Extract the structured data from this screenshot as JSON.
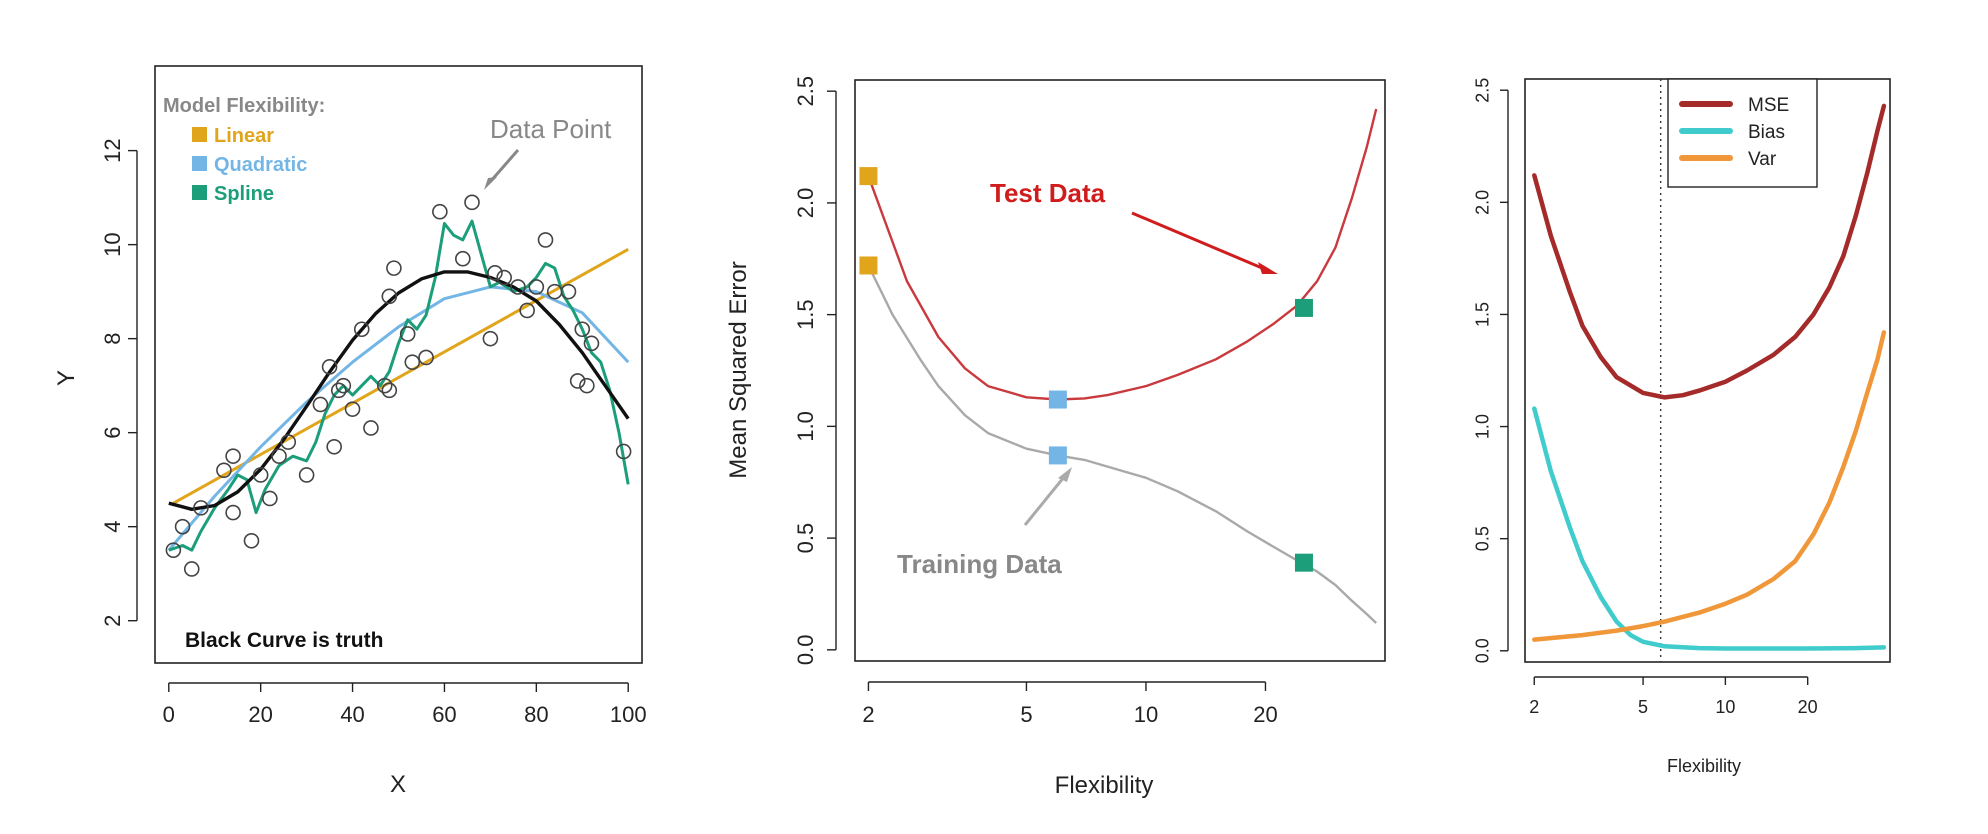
{
  "colors": {
    "linear": "#E1A51C",
    "quadratic": "#73B6E6",
    "spline": "#1D9E7A",
    "truth": "#111111",
    "points": "#444444",
    "test": "#C9393D",
    "train": "#A9A9A9",
    "mse": "#A52A2A",
    "bias": "#40CCCC",
    "var": "#F0973A",
    "test_annot": "#D01C1C",
    "gray_annot": "#888888"
  },
  "chart_data": [
    {
      "type": "scatter",
      "xlabel": "X",
      "ylabel": "Y",
      "xlim": [
        -3,
        103
      ],
      "ylim": [
        1.1,
        13.8
      ],
      "xticks": [
        "0",
        "20",
        "40",
        "60",
        "80",
        "100"
      ],
      "yticks": [
        "2",
        "4",
        "6",
        "8",
        "10",
        "12"
      ],
      "legend_title": "Model Flexibility:",
      "legend": [
        "Linear",
        "Quadratic",
        "Spline"
      ],
      "annotations": {
        "data_point": "Data Point",
        "truth_note": "Black Curve is truth"
      },
      "points": [
        [
          1,
          3.5
        ],
        [
          3,
          4.0
        ],
        [
          5,
          3.1
        ],
        [
          7,
          4.4
        ],
        [
          12,
          5.2
        ],
        [
          14,
          5.5
        ],
        [
          14,
          4.3
        ],
        [
          18,
          3.7
        ],
        [
          20,
          5.1
        ],
        [
          22,
          4.6
        ],
        [
          24,
          5.5
        ],
        [
          26,
          5.8
        ],
        [
          30,
          5.1
        ],
        [
          33,
          6.6
        ],
        [
          35,
          7.4
        ],
        [
          36,
          5.7
        ],
        [
          37,
          6.9
        ],
        [
          38,
          7.0
        ],
        [
          40,
          6.5
        ],
        [
          42,
          8.2
        ],
        [
          44,
          6.1
        ],
        [
          47,
          7.0
        ],
        [
          48,
          6.9
        ],
        [
          48,
          8.9
        ],
        [
          49,
          9.5
        ],
        [
          52,
          8.1
        ],
        [
          53,
          7.5
        ],
        [
          56,
          7.6
        ],
        [
          59,
          10.7
        ],
        [
          64,
          9.7
        ],
        [
          66,
          10.9
        ],
        [
          70,
          8.0
        ],
        [
          71,
          9.4
        ],
        [
          73,
          9.3
        ],
        [
          76,
          9.1
        ],
        [
          78,
          8.6
        ],
        [
          80,
          9.1
        ],
        [
          82,
          10.1
        ],
        [
          84,
          9.0
        ],
        [
          87,
          9.0
        ],
        [
          89,
          7.1
        ],
        [
          90,
          8.2
        ],
        [
          91,
          7.0
        ],
        [
          92,
          7.9
        ],
        [
          99,
          5.6
        ]
      ],
      "truth": [
        [
          0,
          4.5
        ],
        [
          5,
          4.37
        ],
        [
          10,
          4.45
        ],
        [
          15,
          4.74
        ],
        [
          20,
          5.22
        ],
        [
          25,
          5.85
        ],
        [
          30,
          6.56
        ],
        [
          35,
          7.29
        ],
        [
          40,
          7.97
        ],
        [
          45,
          8.53
        ],
        [
          50,
          8.97
        ],
        [
          55,
          9.27
        ],
        [
          60,
          9.42
        ],
        [
          65,
          9.42
        ],
        [
          70,
          9.3
        ],
        [
          75,
          9.1
        ],
        [
          80,
          8.8
        ],
        [
          85,
          8.3
        ],
        [
          90,
          7.7
        ],
        [
          95,
          7.0
        ],
        [
          100,
          6.3
        ]
      ],
      "linear": [
        [
          1,
          4.5
        ],
        [
          100,
          9.9
        ]
      ],
      "quadratic": [
        [
          0,
          3.5
        ],
        [
          10,
          4.65
        ],
        [
          20,
          5.7
        ],
        [
          30,
          6.65
        ],
        [
          40,
          7.5
        ],
        [
          50,
          8.25
        ],
        [
          60,
          8.85
        ],
        [
          70,
          9.1
        ],
        [
          80,
          9.0
        ],
        [
          90,
          8.55
        ],
        [
          100,
          7.5
        ]
      ],
      "spline": [
        [
          0,
          3.5
        ],
        [
          3,
          3.6
        ],
        [
          5,
          3.5
        ],
        [
          7,
          3.9
        ],
        [
          10,
          4.4
        ],
        [
          13,
          4.8
        ],
        [
          15,
          5.1
        ],
        [
          17,
          5.0
        ],
        [
          19,
          4.3
        ],
        [
          21,
          4.8
        ],
        [
          24,
          5.3
        ],
        [
          27,
          5.5
        ],
        [
          30,
          5.4
        ],
        [
          32,
          5.8
        ],
        [
          34,
          6.4
        ],
        [
          36,
          6.8
        ],
        [
          38,
          7.0
        ],
        [
          40,
          6.8
        ],
        [
          42,
          7.0
        ],
        [
          44,
          7.2
        ],
        [
          46,
          7.0
        ],
        [
          48,
          7.3
        ],
        [
          50,
          7.9
        ],
        [
          52,
          8.4
        ],
        [
          54,
          8.2
        ],
        [
          56,
          8.5
        ],
        [
          58,
          9.3
        ],
        [
          60,
          10.45
        ],
        [
          62,
          10.2
        ],
        [
          64,
          10.1
        ],
        [
          66,
          10.5
        ],
        [
          68,
          9.8
        ],
        [
          70,
          9.1
        ],
        [
          72,
          9.2
        ],
        [
          75,
          9.0
        ],
        [
          78,
          9.1
        ],
        [
          80,
          9.3
        ],
        [
          82,
          9.6
        ],
        [
          84,
          9.5
        ],
        [
          86,
          8.9
        ],
        [
          88,
          8.6
        ],
        [
          90,
          8.2
        ],
        [
          92,
          7.7
        ],
        [
          94,
          7.5
        ],
        [
          96,
          6.9
        ],
        [
          98,
          6.0
        ],
        [
          100,
          4.9
        ]
      ]
    },
    {
      "type": "line",
      "xlabel": "Flexibility",
      "ylabel": "Mean Squared Error",
      "xscale": "log",
      "xlim": [
        1.85,
        40
      ],
      "ylim": [
        -0.05,
        2.55
      ],
      "xticks": [
        2,
        5,
        10,
        20
      ],
      "yticks": [
        "0.0",
        "0.5",
        "1.0",
        "1.5",
        "2.0",
        "2.5"
      ],
      "annotations": {
        "test": "Test Data",
        "train": "Training Data"
      },
      "series": [
        {
          "key": "test",
          "values": [
            [
              2,
              2.12
            ],
            [
              2.5,
              1.65
            ],
            [
              3,
              1.4
            ],
            [
              3.5,
              1.26
            ],
            [
              4,
              1.18
            ],
            [
              5,
              1.13
            ],
            [
              6,
              1.12
            ],
            [
              7,
              1.125
            ],
            [
              8,
              1.14
            ],
            [
              10,
              1.18
            ],
            [
              12,
              1.23
            ],
            [
              15,
              1.3
            ],
            [
              18,
              1.38
            ],
            [
              21,
              1.46
            ],
            [
              24,
              1.54
            ],
            [
              27,
              1.65
            ],
            [
              30,
              1.8
            ],
            [
              33,
              2.02
            ],
            [
              36,
              2.25
            ],
            [
              38,
              2.42
            ]
          ],
          "markers": [
            [
              2,
              2.12
            ],
            [
              6,
              1.12
            ],
            [
              25,
              1.53
            ]
          ]
        },
        {
          "key": "train",
          "values": [
            [
              2,
              1.72
            ],
            [
              2.3,
              1.5
            ],
            [
              2.7,
              1.3
            ],
            [
              3,
              1.18
            ],
            [
              3.5,
              1.05
            ],
            [
              4,
              0.97
            ],
            [
              5,
              0.9
            ],
            [
              6,
              0.87
            ],
            [
              7,
              0.85
            ],
            [
              8,
              0.82
            ],
            [
              10,
              0.77
            ],
            [
              12,
              0.71
            ],
            [
              15,
              0.62
            ],
            [
              18,
              0.53
            ],
            [
              21,
              0.46
            ],
            [
              24,
              0.4
            ],
            [
              27,
              0.35
            ],
            [
              30,
              0.29
            ],
            [
              33,
              0.22
            ],
            [
              36,
              0.16
            ],
            [
              38,
              0.12
            ]
          ],
          "markers": [
            [
              2,
              1.72
            ],
            [
              6,
              0.87
            ],
            [
              25,
              0.39
            ]
          ]
        }
      ]
    },
    {
      "type": "line",
      "xlabel": "Flexibility",
      "xscale": "log",
      "xlim": [
        1.85,
        40
      ],
      "ylim": [
        -0.05,
        2.55
      ],
      "xticks": [
        2,
        5,
        10,
        20
      ],
      "yticks": [
        "0.0",
        "0.5",
        "1.0",
        "1.5",
        "2.0",
        "2.5"
      ],
      "vline": 5.8,
      "legend": [
        "MSE",
        "Bias",
        "Var"
      ],
      "legend_position": "top-left",
      "series": [
        {
          "key": "mse",
          "values": [
            [
              2,
              2.12
            ],
            [
              2.3,
              1.85
            ],
            [
              2.7,
              1.6
            ],
            [
              3,
              1.45
            ],
            [
              3.5,
              1.31
            ],
            [
              4,
              1.22
            ],
            [
              5,
              1.15
            ],
            [
              6,
              1.13
            ],
            [
              7,
              1.14
            ],
            [
              8,
              1.16
            ],
            [
              10,
              1.2
            ],
            [
              12,
              1.25
            ],
            [
              15,
              1.32
            ],
            [
              18,
              1.4
            ],
            [
              21,
              1.5
            ],
            [
              24,
              1.62
            ],
            [
              27,
              1.76
            ],
            [
              30,
              1.94
            ],
            [
              33,
              2.13
            ],
            [
              36,
              2.32
            ],
            [
              38,
              2.43
            ]
          ]
        },
        {
          "key": "bias",
          "values": [
            [
              2,
              1.08
            ],
            [
              2.3,
              0.8
            ],
            [
              2.7,
              0.55
            ],
            [
              3,
              0.4
            ],
            [
              3.5,
              0.24
            ],
            [
              4,
              0.13
            ],
            [
              4.5,
              0.07
            ],
            [
              5,
              0.04
            ],
            [
              6,
              0.02
            ],
            [
              8,
              0.012
            ],
            [
              10,
              0.01
            ],
            [
              15,
              0.01
            ],
            [
              20,
              0.01
            ],
            [
              30,
              0.012
            ],
            [
              38,
              0.015
            ]
          ]
        },
        {
          "key": "var",
          "values": [
            [
              2,
              0.05
            ],
            [
              3,
              0.07
            ],
            [
              4,
              0.09
            ],
            [
              5,
              0.11
            ],
            [
              6,
              0.13
            ],
            [
              8,
              0.17
            ],
            [
              10,
              0.21
            ],
            [
              12,
              0.25
            ],
            [
              15,
              0.32
            ],
            [
              18,
              0.4
            ],
            [
              21,
              0.52
            ],
            [
              24,
              0.66
            ],
            [
              27,
              0.82
            ],
            [
              30,
              0.98
            ],
            [
              33,
              1.15
            ],
            [
              36,
              1.3
            ],
            [
              38,
              1.42
            ]
          ]
        }
      ]
    }
  ]
}
